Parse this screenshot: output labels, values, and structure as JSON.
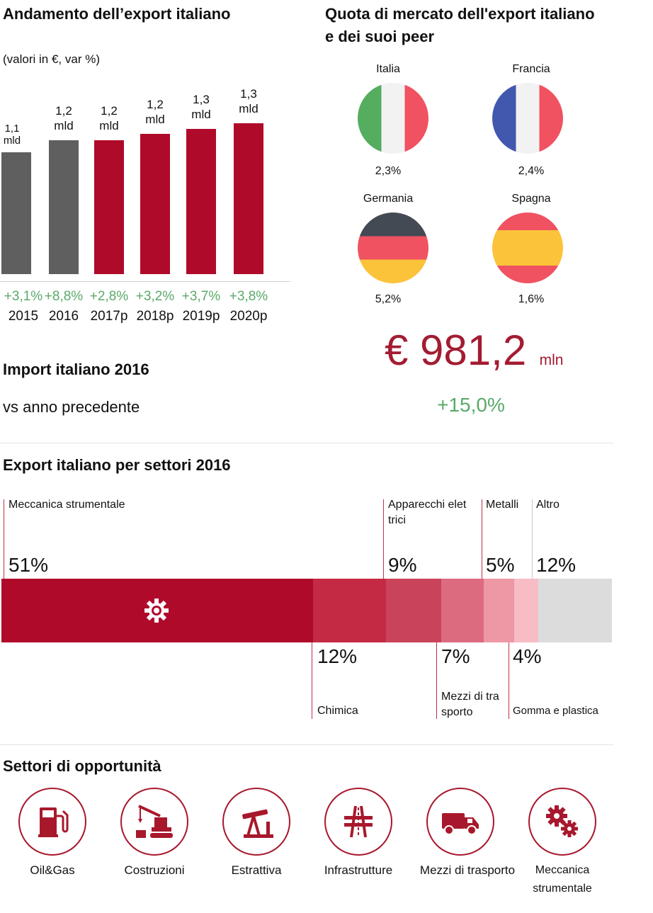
{
  "export_chart": {
    "title": "Andamento dell’export italiano",
    "subtitle": "(valori in €, var %)"
  },
  "chart_data": [
    {
      "type": "bar",
      "title": "Andamento dell’export italiano",
      "subtitle": "(valori in €, var %)",
      "categories": [
        "2015",
        "2016",
        "2017p",
        "2018p",
        "2019p",
        "2020p"
      ],
      "values": [
        1.1,
        1.2,
        1.2,
        1.2,
        1.3,
        1.3
      ],
      "value_labels": [
        "1,1 mld",
        "1,2 mld",
        "1,2 mld",
        "1,2 mld",
        "1,3 mld",
        "1,3 mld"
      ],
      "growth_labels": [
        "+3,1%",
        "+8,8%",
        "+2,8%",
        "+3,2%",
        "+3,7%",
        "+3,8%"
      ],
      "colors": [
        "#5f5f5f",
        "#5f5f5f",
        "#b00a2b",
        "#b00a2b",
        "#b00a2b",
        "#b00a2b"
      ],
      "growth_color": "#5aa96a"
    },
    {
      "type": "bar",
      "stacked": true,
      "title": "Export italiano per settori 2016",
      "categories": [
        "Meccanica strumentale",
        "Chimica",
        "Apparecchi elet trici",
        "Mezzi di tra sporto",
        "Metalli",
        "Gomma e plastica",
        "Altro"
      ],
      "values": [
        51,
        12,
        9,
        7,
        5,
        4,
        12
      ],
      "value_labels": [
        "51%",
        "12%",
        "9%",
        "7%",
        "5%",
        "4%",
        "12%"
      ],
      "colors": [
        "#b00a2b",
        "#c42a43",
        "#c9435a",
        "#dd6b80",
        "#ee97a5",
        "#f7bcc6",
        "#dcdcdc"
      ]
    }
  ],
  "market_share": {
    "title_line1": "Quota di mercato dell'export italiano",
    "title_line2": "e dei suoi peer",
    "countries": [
      {
        "name": "Italia",
        "value": "2,3%"
      },
      {
        "name": "Francia",
        "value": "2,4%"
      },
      {
        "name": "Germania",
        "value": "5,2%"
      },
      {
        "name": "Spagna",
        "value": "1,6%"
      }
    ]
  },
  "import": {
    "title": "Import italiano 2016",
    "compare_label": "vs anno precedente",
    "value": "€ 981,2",
    "unit": "mln",
    "change": "+15,0%",
    "value_color": "#a31c32",
    "change_color": "#5aa96a"
  },
  "sectors": {
    "title": "Export italiano per settori 2016",
    "icon": "gear-icon"
  },
  "opportunities": {
    "title": "Settori di opportunità",
    "items": [
      {
        "label": "Oil&Gas",
        "icon": "fuel-pump-icon"
      },
      {
        "label": "Costruzioni",
        "icon": "crane-icon"
      },
      {
        "label": "Estrattiva",
        "icon": "oil-pump-icon"
      },
      {
        "label": "Infrastrutture",
        "icon": "road-icon"
      },
      {
        "label": "Mezzi di trasporto",
        "icon": "truck-icon"
      },
      {
        "label_line1": "Meccanica",
        "label_line2": "strumentale",
        "icon": "gears-icon"
      }
    ],
    "accent": "#a8182c"
  }
}
